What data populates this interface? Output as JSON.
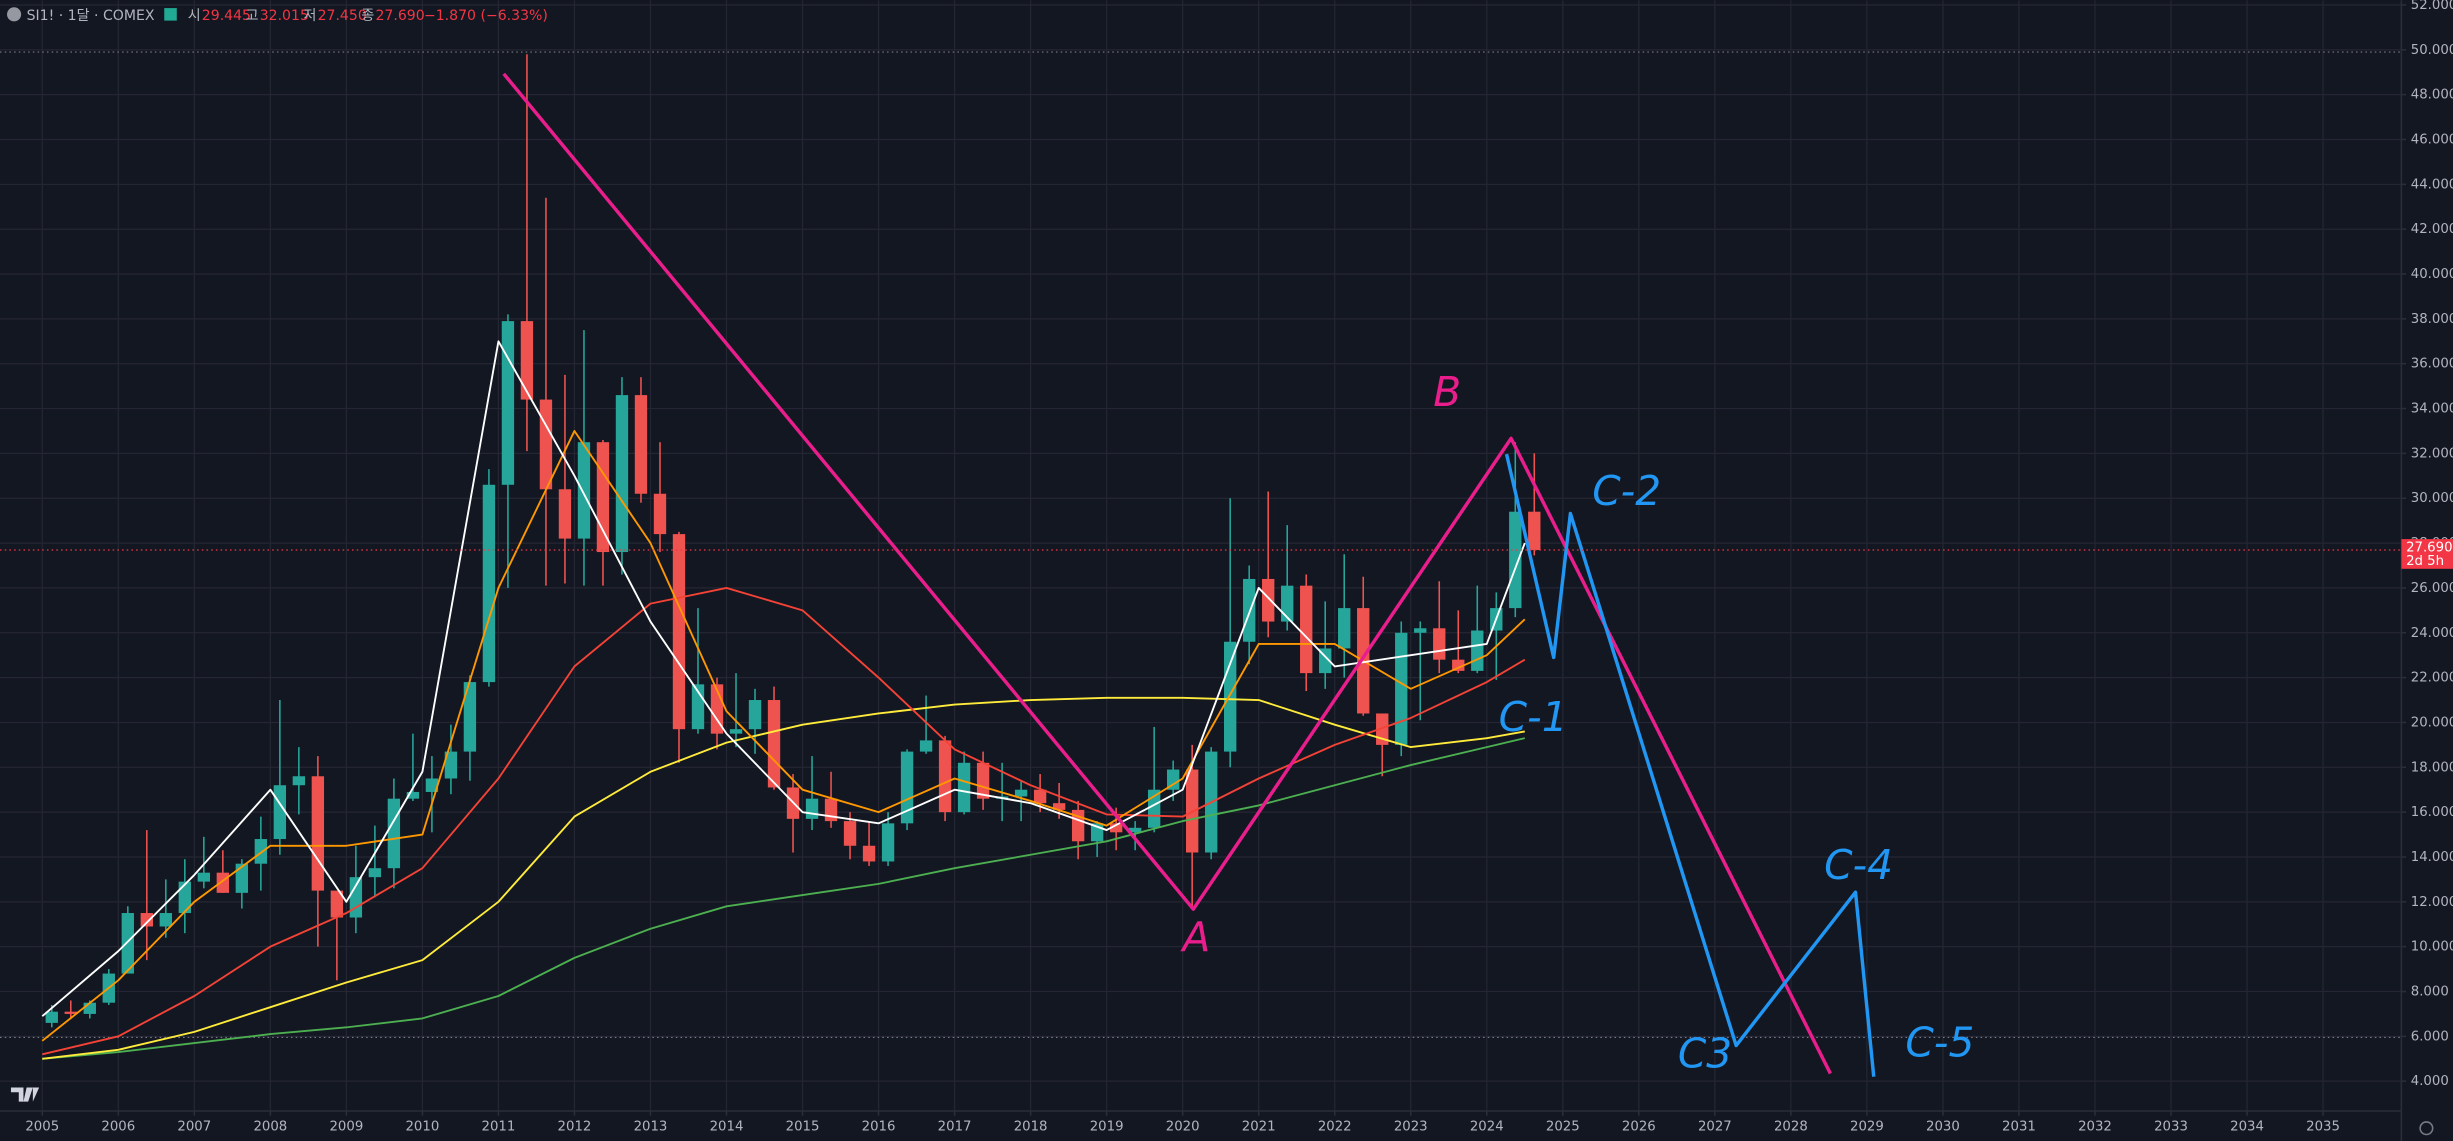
{
  "chart_data": {
    "type": "candlestick",
    "header": {
      "symbol": "SI1! · 1달 · COMEX",
      "open_label": "시",
      "open": "29.445",
      "high_label": "고",
      "high": "32.015",
      "low_label": "저",
      "low": "27.450",
      "close_label": "종",
      "close": "27.690",
      "change": "−1.870 (−6.33%)"
    },
    "xlim": [
      2004.444,
      2036.03
    ],
    "ylim": [
      2.67,
      52.21
    ],
    "xticks": [
      2005,
      2006,
      2007,
      2008,
      2009,
      2010,
      2011,
      2012,
      2013,
      2014,
      2015,
      2016,
      2017,
      2018,
      2019,
      2020,
      2021,
      2022,
      2023,
      2024,
      2025,
      2026,
      2027,
      2028,
      2029,
      2030,
      2031,
      2032,
      2033,
      2034,
      2035
    ],
    "yticks": [
      {
        "value": 4,
        "label": "4.000"
      },
      {
        "value": 6,
        "label": "6.000"
      },
      {
        "value": 8,
        "label": "8.000"
      },
      {
        "value": 10,
        "label": "10.000"
      },
      {
        "value": 12,
        "label": "12.000"
      },
      {
        "value": 14,
        "label": "14.000"
      },
      {
        "value": 16,
        "label": "16.000"
      },
      {
        "value": 18,
        "label": "18.000"
      },
      {
        "value": 20,
        "label": "20.000"
      },
      {
        "value": 22,
        "label": "22.000"
      },
      {
        "value": 24,
        "label": "24.000"
      },
      {
        "value": 26,
        "label": "26.000"
      },
      {
        "value": 28,
        "label": "28.000"
      },
      {
        "value": 30,
        "label": "30.000"
      },
      {
        "value": 32,
        "label": "32.000"
      },
      {
        "value": 34,
        "label": "34.000"
      },
      {
        "value": 36,
        "label": "36.000"
      },
      {
        "value": 38,
        "label": "38.000"
      },
      {
        "value": 40,
        "label": "40.000"
      },
      {
        "value": 42,
        "label": "42.000"
      },
      {
        "value": 44,
        "label": "44.000"
      },
      {
        "value": 46,
        "label": "46.000"
      },
      {
        "value": 48,
        "label": "48.000"
      },
      {
        "value": 50,
        "label": "50.000"
      },
      {
        "value": 52,
        "label": "52.000"
      }
    ],
    "grid": true,
    "up_color": "#26a69a",
    "down_color": "#ef5350",
    "x": [
      2005.125,
      2005.375,
      2005.625,
      2005.875,
      2006.125,
      2006.375,
      2006.625,
      2006.875,
      2007.125,
      2007.375,
      2007.625,
      2007.875,
      2008.125,
      2008.375,
      2008.625,
      2008.875,
      2009.125,
      2009.375,
      2009.625,
      2009.875,
      2010.125,
      2010.375,
      2010.625,
      2010.875,
      2011.125,
      2011.375,
      2011.625,
      2011.875,
      2012.125,
      2012.375,
      2012.625,
      2012.875,
      2013.125,
      2013.375,
      2013.625,
      2013.875,
      2014.125,
      2014.375,
      2014.625,
      2014.875,
      2015.125,
      2015.375,
      2015.625,
      2015.875,
      2016.125,
      2016.375,
      2016.625,
      2016.875,
      2017.125,
      2017.375,
      2017.625,
      2017.875,
      2018.125,
      2018.375,
      2018.625,
      2018.875,
      2019.125,
      2019.375,
      2019.625,
      2019.875,
      2020.125,
      2020.375,
      2020.625,
      2020.875,
      2021.125,
      2021.375,
      2021.625,
      2021.875,
      2022.125,
      2022.375,
      2022.625,
      2022.875,
      2023.125,
      2023.375,
      2023.625,
      2023.875,
      2024.125,
      2024.375,
      2024.625
    ],
    "open": [
      6.6,
      7.1,
      7.0,
      7.5,
      8.8,
      11.5,
      10.9,
      11.5,
      12.9,
      13.3,
      12.4,
      13.7,
      14.8,
      17.2,
      17.6,
      12.5,
      11.3,
      13.1,
      13.5,
      16.6,
      16.9,
      17.5,
      18.7,
      21.8,
      30.6,
      37.9,
      34.4,
      30.4,
      28.2,
      32.5,
      27.6,
      34.6,
      30.2,
      28.4,
      19.7,
      21.7,
      19.5,
      19.7,
      21.0,
      17.1,
      15.7,
      16.6,
      15.6,
      14.5,
      13.8,
      15.5,
      18.7,
      19.2,
      16.0,
      18.2,
      16.6,
      16.7,
      17.0,
      16.4,
      16.1,
      14.7,
      15.5,
      15.1,
      15.3,
      17.0,
      17.9,
      14.2,
      18.7,
      23.6,
      26.4,
      24.5,
      26.1,
      22.2,
      23.3,
      25.1,
      20.4,
      19.0,
      24.0,
      24.2,
      22.8,
      22.3,
      24.1,
      25.1,
      29.4
    ],
    "high": [
      7.4,
      7.6,
      7.6,
      9.0,
      11.8,
      15.2,
      13.0,
      13.9,
      14.9,
      14.3,
      13.9,
      15.8,
      21.0,
      18.9,
      18.5,
      12.1,
      14.5,
      15.4,
      17.5,
      19.5,
      18.5,
      19.9,
      22.1,
      31.3,
      38.2,
      49.8,
      43.4,
      35.5,
      37.5,
      32.6,
      35.4,
      35.4,
      32.5,
      28.5,
      25.1,
      22.0,
      22.2,
      21.5,
      21.6,
      17.7,
      18.5,
      17.8,
      16.0,
      15.6,
      16.0,
      18.8,
      21.2,
      19.4,
      18.7,
      18.7,
      18.2,
      17.4,
      17.7,
      17.3,
      16.5,
      15.6,
      16.2,
      15.6,
      19.8,
      18.3,
      19.0,
      18.9,
      30.0,
      27.0,
      30.3,
      28.8,
      26.6,
      25.4,
      27.5,
      26.5,
      20.3,
      24.5,
      24.5,
      26.3,
      25.0,
      26.1,
      25.8,
      32.5,
      32.0
    ],
    "low": [
      6.4,
      6.8,
      6.8,
      7.4,
      8.8,
      9.4,
      10.4,
      10.6,
      12.6,
      12.4,
      11.7,
      12.5,
      14.1,
      15.9,
      10.0,
      8.5,
      10.6,
      12.2,
      12.6,
      16.5,
      15.1,
      16.8,
      17.4,
      21.6,
      26.0,
      32.1,
      26.1,
      26.2,
      26.1,
      26.1,
      26.6,
      29.8,
      27.6,
      18.2,
      19.5,
      18.8,
      18.9,
      18.6,
      17.0,
      14.2,
      15.2,
      15.3,
      13.9,
      13.6,
      13.6,
      15.2,
      18.6,
      15.6,
      15.9,
      16.1,
      15.6,
      15.6,
      16.0,
      15.7,
      13.9,
      14.0,
      14.3,
      14.3,
      15.1,
      16.5,
      11.7,
      13.9,
      18.0,
      22.6,
      23.8,
      24.1,
      21.4,
      21.5,
      22.0,
      20.3,
      17.6,
      18.5,
      20.1,
      22.2,
      22.2,
      22.2,
      21.9,
      24.7,
      27.45
    ],
    "close": [
      7.1,
      7.0,
      7.5,
      8.8,
      11.5,
      10.9,
      11.5,
      12.9,
      13.3,
      12.4,
      13.7,
      14.8,
      17.2,
      17.6,
      12.5,
      11.3,
      13.1,
      13.5,
      16.6,
      16.9,
      17.5,
      18.7,
      21.8,
      30.6,
      37.9,
      34.4,
      30.4,
      28.2,
      32.5,
      27.6,
      34.6,
      30.2,
      28.4,
      19.7,
      21.7,
      19.5,
      19.7,
      21.0,
      17.1,
      15.7,
      16.6,
      15.6,
      14.5,
      13.8,
      15.5,
      18.7,
      19.2,
      16.0,
      18.2,
      16.6,
      16.7,
      17.0,
      16.4,
      16.1,
      14.7,
      15.5,
      15.1,
      15.3,
      17.0,
      17.9,
      14.2,
      18.7,
      23.6,
      26.4,
      24.5,
      26.1,
      22.2,
      23.3,
      25.1,
      20.4,
      19.0,
      24.0,
      24.2,
      22.8,
      22.3,
      24.1,
      25.1,
      29.4,
      27.69
    ],
    "ma_x": [
      2005,
      2006,
      2007,
      2008,
      2009,
      2010,
      2011,
      2012,
      2013,
      2014,
      2015,
      2016,
      2017,
      2018,
      2019,
      2020,
      2021,
      2022,
      2023,
      2024,
      2024.5
    ],
    "moving_averages": [
      {
        "color": "#4caf50",
        "values": [
          5.0,
          5.3,
          5.7,
          6.1,
          6.4,
          6.8,
          7.8,
          9.5,
          10.8,
          11.8,
          12.3,
          12.8,
          13.5,
          14.1,
          14.7,
          15.6,
          16.3,
          17.2,
          18.1,
          18.9,
          19.3
        ]
      },
      {
        "color": "#ffeb3b",
        "values": [
          5.0,
          5.4,
          6.2,
          7.3,
          8.4,
          9.4,
          12.0,
          15.8,
          17.8,
          19.1,
          19.9,
          20.4,
          20.8,
          21.0,
          21.1,
          21.1,
          21.0,
          19.9,
          18.9,
          19.3,
          19.6
        ]
      },
      {
        "color": "#f44336",
        "values": [
          5.2,
          6.0,
          7.8,
          10.0,
          11.5,
          13.5,
          17.5,
          22.5,
          25.3,
          26.0,
          25.0,
          22.0,
          18.8,
          17.2,
          15.9,
          15.8,
          17.5,
          19.0,
          20.2,
          21.8,
          22.8
        ]
      },
      {
        "color": "#ff9800",
        "values": [
          5.8,
          8.5,
          12.0,
          14.5,
          14.5,
          15.0,
          26.0,
          33.0,
          28.0,
          20.5,
          17.0,
          16.0,
          17.5,
          16.5,
          15.4,
          17.5,
          23.5,
          23.5,
          21.5,
          23.0,
          24.6
        ]
      },
      {
        "color": "#ffffff",
        "values": [
          6.9,
          9.8,
          13.2,
          17.0,
          12.0,
          17.8,
          37.0,
          31.0,
          24.5,
          19.5,
          16.0,
          15.5,
          17.0,
          16.4,
          15.2,
          17.0,
          26.0,
          22.5,
          23.0,
          23.5,
          28.0
        ]
      }
    ],
    "hlines": [
      49.9,
      5.95
    ],
    "current_price": {
      "value": 27.69,
      "label": "27.690",
      "color": "#f23645"
    },
    "countdown": "2d 5h",
    "drawings": [
      {
        "color": "#e91e8c",
        "x": [
          2011.07,
          2020.14,
          2024.32,
          2028.52
        ],
        "y": [
          48.93,
          11.67,
          32.67,
          4.34
        ]
      },
      {
        "color": "#2196f3",
        "x": [
          2024.26,
          2024.88,
          2025.1,
          2027.28,
          2028.85,
          2029.09
        ],
        "y": [
          31.97,
          22.9,
          29.32,
          5.59,
          12.43,
          4.2
        ]
      }
    ],
    "annotations": [
      {
        "text": "A",
        "x": 2020.18,
        "y": 10.3,
        "color": "#e91e8c"
      },
      {
        "text": "B",
        "x": 2023.48,
        "y": 34.6,
        "color": "#e91e8c"
      },
      {
        "text": "C-1",
        "x": 2024.61,
        "y": 20.1,
        "color": "#2196f3"
      },
      {
        "text": "C-2",
        "x": 2025.84,
        "y": 30.2,
        "color": "#2196f3"
      },
      {
        "text": "C3",
        "x": 2026.87,
        "y": 5.1,
        "color": "#2196f3"
      },
      {
        "text": "C-4",
        "x": 2028.89,
        "y": 13.5,
        "color": "#2196f3"
      },
      {
        "text": "C-5",
        "x": 2029.96,
        "y": 5.6,
        "color": "#2196f3"
      }
    ]
  }
}
